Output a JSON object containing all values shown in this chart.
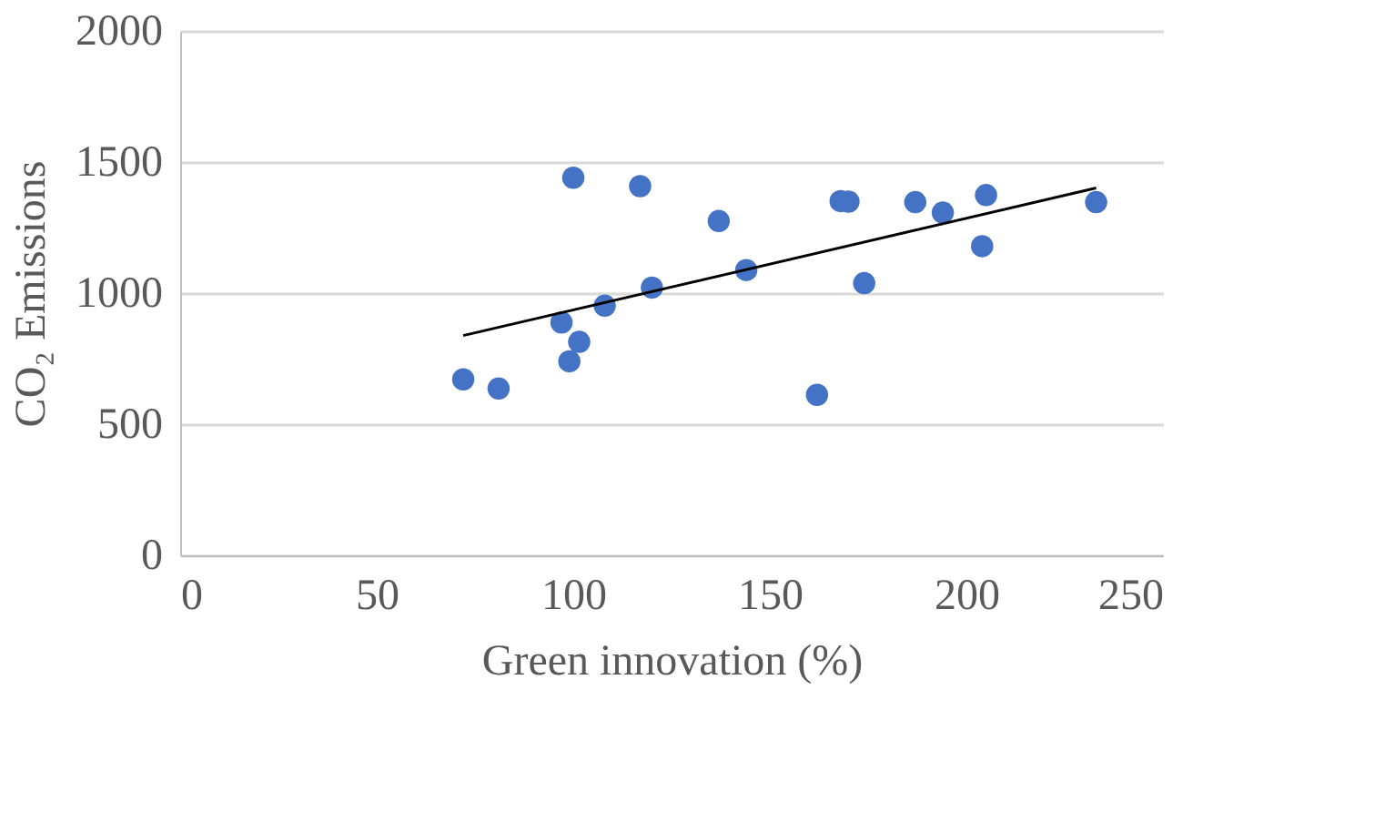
{
  "chart_data": {
    "type": "scatter",
    "xlabel": "Green innovation (%)",
    "ylabel": "CO₂ Emissions",
    "xlim": [
      0,
      250
    ],
    "xticks": [
      0,
      50,
      100,
      150,
      200,
      250
    ],
    "ylim": [
      0,
      2000
    ],
    "yticks": [
      0,
      500,
      1000,
      1500,
      2000
    ],
    "grid": "y",
    "legend": false,
    "series": [
      {
        "type": "scatter",
        "marker": "circle",
        "color": "#4472c4",
        "x": [
          72,
          81,
          97,
          99,
          100,
          101.5,
          108,
          117,
          120,
          137,
          144,
          162,
          168,
          170,
          174,
          187,
          194,
          204,
          205,
          233
        ],
        "values": [
          671,
          636,
          888,
          740,
          1440,
          814,
          952,
          1408,
          1021,
          1275,
          1088,
          612,
          1351,
          1349,
          1038,
          1347,
          1307,
          1179,
          1374,
          1347
        ]
      },
      {
        "type": "line",
        "color": "#000000",
        "line_style": "solid",
        "marker": "none",
        "x": [
          72,
          233
        ],
        "values": [
          838,
          1401
        ]
      }
    ]
  }
}
